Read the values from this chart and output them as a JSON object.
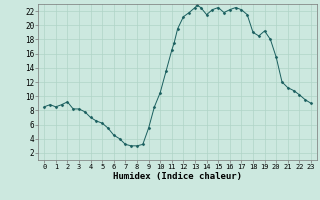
{
  "x": [
    0,
    0.5,
    1,
    1.5,
    2,
    2.5,
    3,
    3.5,
    4,
    4.5,
    5,
    5.5,
    6,
    6.5,
    7,
    7.5,
    8,
    8.5,
    9,
    9.5,
    10,
    10.5,
    11,
    11.2,
    11.5,
    12,
    12.5,
    13,
    13.2,
    13.5,
    14,
    14.5,
    15,
    15.5,
    16,
    16.5,
    17,
    17.5,
    18,
    18.5,
    19,
    19.5,
    20,
    20.5,
    21,
    21.5,
    22,
    22.5,
    23
  ],
  "y": [
    8.5,
    8.8,
    8.5,
    8.8,
    9.2,
    8.2,
    8.2,
    7.8,
    7.0,
    6.5,
    6.2,
    5.5,
    4.5,
    4.0,
    3.2,
    3.0,
    3.0,
    3.2,
    5.5,
    8.5,
    10.5,
    13.5,
    16.5,
    17.5,
    19.5,
    21.2,
    21.8,
    22.5,
    22.8,
    22.5,
    21.5,
    22.2,
    22.5,
    21.8,
    22.2,
    22.5,
    22.2,
    21.5,
    19.0,
    18.5,
    19.2,
    18.0,
    15.5,
    12.0,
    11.2,
    10.8,
    10.2,
    9.5,
    9.0
  ],
  "line_color": "#1a5f5f",
  "marker_color": "#1a5f5f",
  "bg_color": "#cce8df",
  "grid_color": "#b0d4c8",
  "xlabel": "Humidex (Indice chaleur)",
  "xlim": [
    -0.5,
    23.5
  ],
  "ylim": [
    1,
    23
  ],
  "yticks": [
    2,
    4,
    6,
    8,
    10,
    12,
    14,
    16,
    18,
    20,
    22
  ],
  "xticks": [
    0,
    1,
    2,
    3,
    4,
    5,
    6,
    7,
    8,
    9,
    10,
    11,
    12,
    13,
    14,
    15,
    16,
    17,
    18,
    19,
    20,
    21,
    22,
    23
  ]
}
